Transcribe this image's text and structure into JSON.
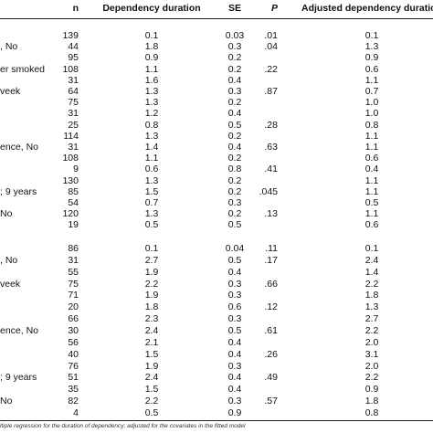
{
  "table": {
    "columns": [
      "n",
      "Dependency duration",
      "SE",
      "P",
      "Adjusted dependency duration"
    ],
    "groups": [
      {
        "rows": [
          [
            null,
            "139",
            "0.1",
            "0.03",
            ".01",
            "0.1"
          ],
          [
            ", No",
            "44",
            "1.8",
            "0.3",
            ".04",
            "1.3"
          ],
          [
            null,
            "95",
            "0.9",
            "0.2",
            null,
            "0.9"
          ],
          [
            "er smoked",
            "108",
            "1.1",
            "0.2",
            ".22",
            "0.6"
          ],
          [
            null,
            "31",
            "1.6",
            "0.4",
            null,
            "1.1"
          ],
          [
            "veek",
            "64",
            "1.3",
            "0.3",
            ".87",
            "0.7"
          ],
          [
            null,
            "75",
            "1.3",
            "0.2",
            null,
            "1.0"
          ],
          [
            null,
            "31",
            "1.2",
            "0.4",
            null,
            "1.0"
          ],
          [
            null,
            "25",
            "0.8",
            "0.5",
            ".28",
            "0.8"
          ],
          [
            null,
            "114",
            "1.3",
            "0.2",
            null,
            "1.1"
          ],
          [
            "ence, No",
            "31",
            "1.4",
            "0.4",
            ".63",
            "1.1"
          ],
          [
            null,
            "108",
            "1.1",
            "0.2",
            null,
            "0.6"
          ],
          [
            null,
            "9",
            "0.6",
            "0.8",
            ".41",
            "0.4"
          ],
          [
            null,
            "130",
            "1.3",
            "0.2",
            null,
            "1.1"
          ],
          [
            "; 9 years",
            "85",
            "1.5",
            "0.2",
            ".045",
            "1.1"
          ],
          [
            null,
            "54",
            "0.7",
            "0.3",
            null,
            "0.5"
          ],
          [
            "No",
            "120",
            "1.3",
            "0.2",
            ".13",
            "1.1"
          ],
          [
            null,
            "19",
            "0.5",
            "0.5",
            null,
            "0.6"
          ]
        ]
      },
      {
        "rows": [
          [
            null,
            "86",
            "0.1",
            "0.04",
            ".11",
            "0.1"
          ],
          [
            ", No",
            "31",
            "2.7",
            "0.5",
            ".17",
            "2.4"
          ],
          [
            null,
            "55",
            "1.9",
            "0.4",
            null,
            "1.4"
          ],
          [
            "veek",
            "75",
            "2.2",
            "0.3",
            ".66",
            "2.2"
          ],
          [
            null,
            "71",
            "1.9",
            "0.3",
            null,
            "1.8"
          ],
          [
            null,
            "20",
            "1.8",
            "0.6",
            ".12",
            "1.3"
          ],
          [
            null,
            "66",
            "2.3",
            "0.3",
            null,
            "2.7"
          ],
          [
            "ence, No",
            "30",
            "2.4",
            "0.5",
            ".61",
            "2.2"
          ],
          [
            null,
            "56",
            "2.1",
            "0.4",
            null,
            "2.0"
          ],
          [
            null,
            "40",
            "1.5",
            "0.4",
            ".26",
            "3.1"
          ],
          [
            null,
            "76",
            "1.9",
            "0.3",
            null,
            "2.0"
          ],
          [
            "; 9 years",
            "51",
            "2.4",
            "0.4",
            ".49",
            "2.2"
          ],
          [
            null,
            "35",
            "1.5",
            "0.4",
            null,
            "0.9"
          ],
          [
            "No",
            "82",
            "2.2",
            "0.3",
            ".57",
            "1.8"
          ],
          [
            null,
            "4",
            "0.5",
            "0.9",
            null,
            "0.8"
          ]
        ]
      }
    ],
    "footnote": "ltiple regression for the duration of dependency; adjusted for the covariates in the fitted model"
  }
}
